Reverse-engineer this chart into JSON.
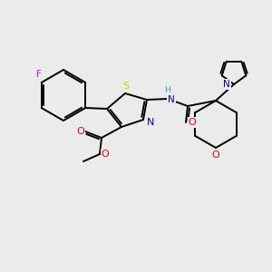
{
  "background_color": "#ebebeb",
  "atom_colors": {
    "C": "#000000",
    "N": "#0000cc",
    "O": "#ff0000",
    "S": "#cccc00",
    "F": "#ff00ff",
    "H": "#4a9a9a"
  },
  "figsize": [
    3.0,
    3.0
  ],
  "dpi": 100,
  "lw": 1.4
}
